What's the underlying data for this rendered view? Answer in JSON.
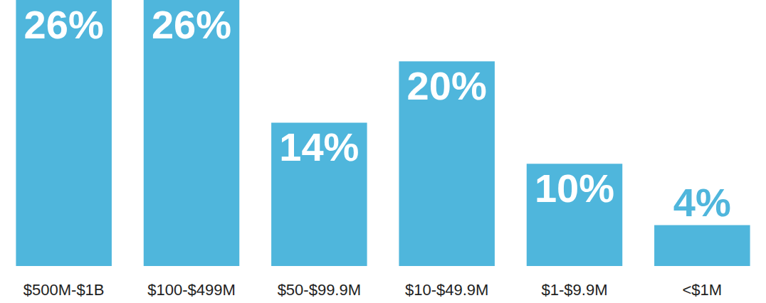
{
  "chart_data": {
    "type": "bar",
    "categories": [
      "$500M-$1B",
      "$100-$499M",
      "$50-$99.9M",
      "$10-$49.9M",
      "$1-$9.9M",
      "<$1M"
    ],
    "values": [
      26,
      26,
      14,
      20,
      10,
      4
    ],
    "value_labels": [
      "26%",
      "26%",
      "14%",
      "20%",
      "10%",
      "4%"
    ],
    "color": "#4fb6dc",
    "ylim": [
      0,
      26
    ],
    "grid": false,
    "data_labels": true,
    "tick_labels": "x"
  }
}
